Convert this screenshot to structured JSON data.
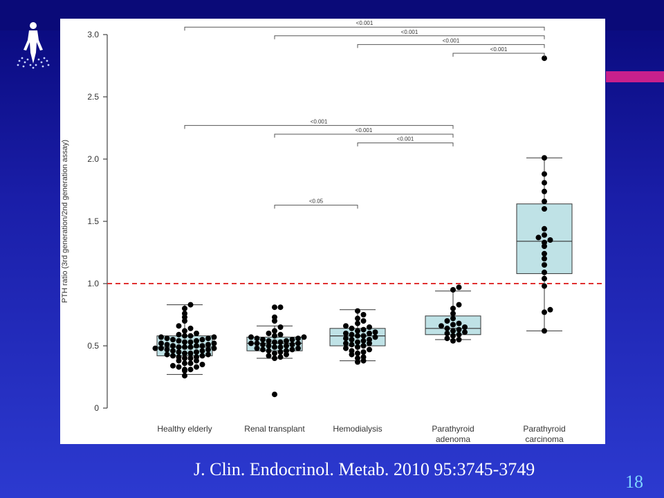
{
  "slide": {
    "citation": "J. Clin. Endocrinol. Metab. 2010 95:3745-3749",
    "number": "18",
    "accent_color": "#c8208c",
    "logo_icon": "human-figure-logo-icon"
  },
  "chart_data": {
    "type": "box",
    "title": "",
    "xlabel": "",
    "ylabel": "PTH ratio (3rd generation/2nd generation assay)",
    "ylim": [
      0,
      3.0
    ],
    "yticks": [
      "0",
      "0.5",
      "1.0",
      "1.5",
      "2.0",
      "2.5",
      "3.0"
    ],
    "reference_line": {
      "y": 1.0,
      "style": "dashed",
      "color": "#e03030"
    },
    "box_color": "#bfe2e6",
    "categories": [
      [
        "Healthy elderly"
      ],
      [
        "Renal transplant"
      ],
      [
        "Hemodialysis"
      ],
      [
        "Parathyroid",
        "adenoma"
      ],
      [
        "Parathyroid",
        "carcinoma"
      ]
    ],
    "boxes": [
      {
        "q1": 0.42,
        "median": 0.49,
        "q3": 0.58,
        "whisker_low": 0.27,
        "whisker_high": 0.83
      },
      {
        "q1": 0.46,
        "median": 0.52,
        "q3": 0.57,
        "whisker_low": 0.4,
        "whisker_high": 0.66
      },
      {
        "q1": 0.5,
        "median": 0.58,
        "q3": 0.64,
        "whisker_low": 0.38,
        "whisker_high": 0.79
      },
      {
        "q1": 0.59,
        "median": 0.64,
        "q3": 0.74,
        "whisker_low": 0.55,
        "whisker_high": 0.94
      },
      {
        "q1": 1.08,
        "median": 1.34,
        "q3": 1.64,
        "whisker_low": 0.62,
        "whisker_high": 2.01
      }
    ],
    "points": [
      [
        0.26,
        0.3,
        0.31,
        0.31,
        0.33,
        0.33,
        0.34,
        0.35,
        0.36,
        0.36,
        0.38,
        0.38,
        0.4,
        0.4,
        0.41,
        0.41,
        0.42,
        0.42,
        0.43,
        0.43,
        0.44,
        0.44,
        0.45,
        0.45,
        0.46,
        0.46,
        0.47,
        0.47,
        0.48,
        0.48,
        0.48,
        0.49,
        0.49,
        0.49,
        0.5,
        0.5,
        0.5,
        0.51,
        0.51,
        0.52,
        0.52,
        0.53,
        0.53,
        0.54,
        0.54,
        0.55,
        0.55,
        0.56,
        0.56,
        0.57,
        0.57,
        0.58,
        0.58,
        0.59,
        0.6,
        0.62,
        0.64,
        0.66,
        0.7,
        0.73,
        0.76,
        0.8,
        0.83
      ],
      [
        0.11,
        0.4,
        0.41,
        0.42,
        0.43,
        0.44,
        0.45,
        0.46,
        0.46,
        0.47,
        0.47,
        0.48,
        0.48,
        0.49,
        0.49,
        0.5,
        0.5,
        0.51,
        0.51,
        0.52,
        0.52,
        0.52,
        0.53,
        0.53,
        0.54,
        0.54,
        0.55,
        0.55,
        0.56,
        0.56,
        0.57,
        0.57,
        0.58,
        0.59,
        0.6,
        0.62,
        0.65,
        0.7,
        0.73,
        0.81,
        0.81
      ],
      [
        0.37,
        0.38,
        0.4,
        0.41,
        0.43,
        0.44,
        0.45,
        0.46,
        0.47,
        0.48,
        0.49,
        0.5,
        0.51,
        0.52,
        0.52,
        0.53,
        0.54,
        0.55,
        0.55,
        0.56,
        0.57,
        0.58,
        0.58,
        0.59,
        0.6,
        0.6,
        0.61,
        0.62,
        0.63,
        0.64,
        0.65,
        0.66,
        0.68,
        0.7,
        0.72,
        0.75,
        0.78
      ],
      [
        0.54,
        0.55,
        0.56,
        0.58,
        0.59,
        0.6,
        0.61,
        0.62,
        0.63,
        0.64,
        0.65,
        0.66,
        0.67,
        0.68,
        0.7,
        0.72,
        0.76,
        0.8,
        0.83,
        0.95,
        0.97
      ],
      [
        0.62,
        0.77,
        0.79,
        0.98,
        1.04,
        1.09,
        1.15,
        1.2,
        1.24,
        1.3,
        1.33,
        1.35,
        1.37,
        1.39,
        1.44,
        1.6,
        1.66,
        1.74,
        1.81,
        1.88,
        2.01,
        2.81
      ]
    ],
    "significance_brackets": [
      {
        "from": 0,
        "to": 4,
        "y": 3.06,
        "label": "<0.001"
      },
      {
        "from": 1,
        "to": 4,
        "y": 2.99,
        "label": "<0.001"
      },
      {
        "from": 2,
        "to": 4,
        "y": 2.92,
        "label": "<0.001"
      },
      {
        "from": 3,
        "to": 4,
        "y": 2.85,
        "label": "<0.001"
      },
      {
        "from": 0,
        "to": 3,
        "y": 2.27,
        "label": "<0.001"
      },
      {
        "from": 1,
        "to": 3,
        "y": 2.2,
        "label": "<0.001"
      },
      {
        "from": 2,
        "to": 3,
        "y": 2.13,
        "label": "<0.001"
      },
      {
        "from": 1,
        "to": 2,
        "y": 1.63,
        "label": "<0.05"
      }
    ]
  }
}
